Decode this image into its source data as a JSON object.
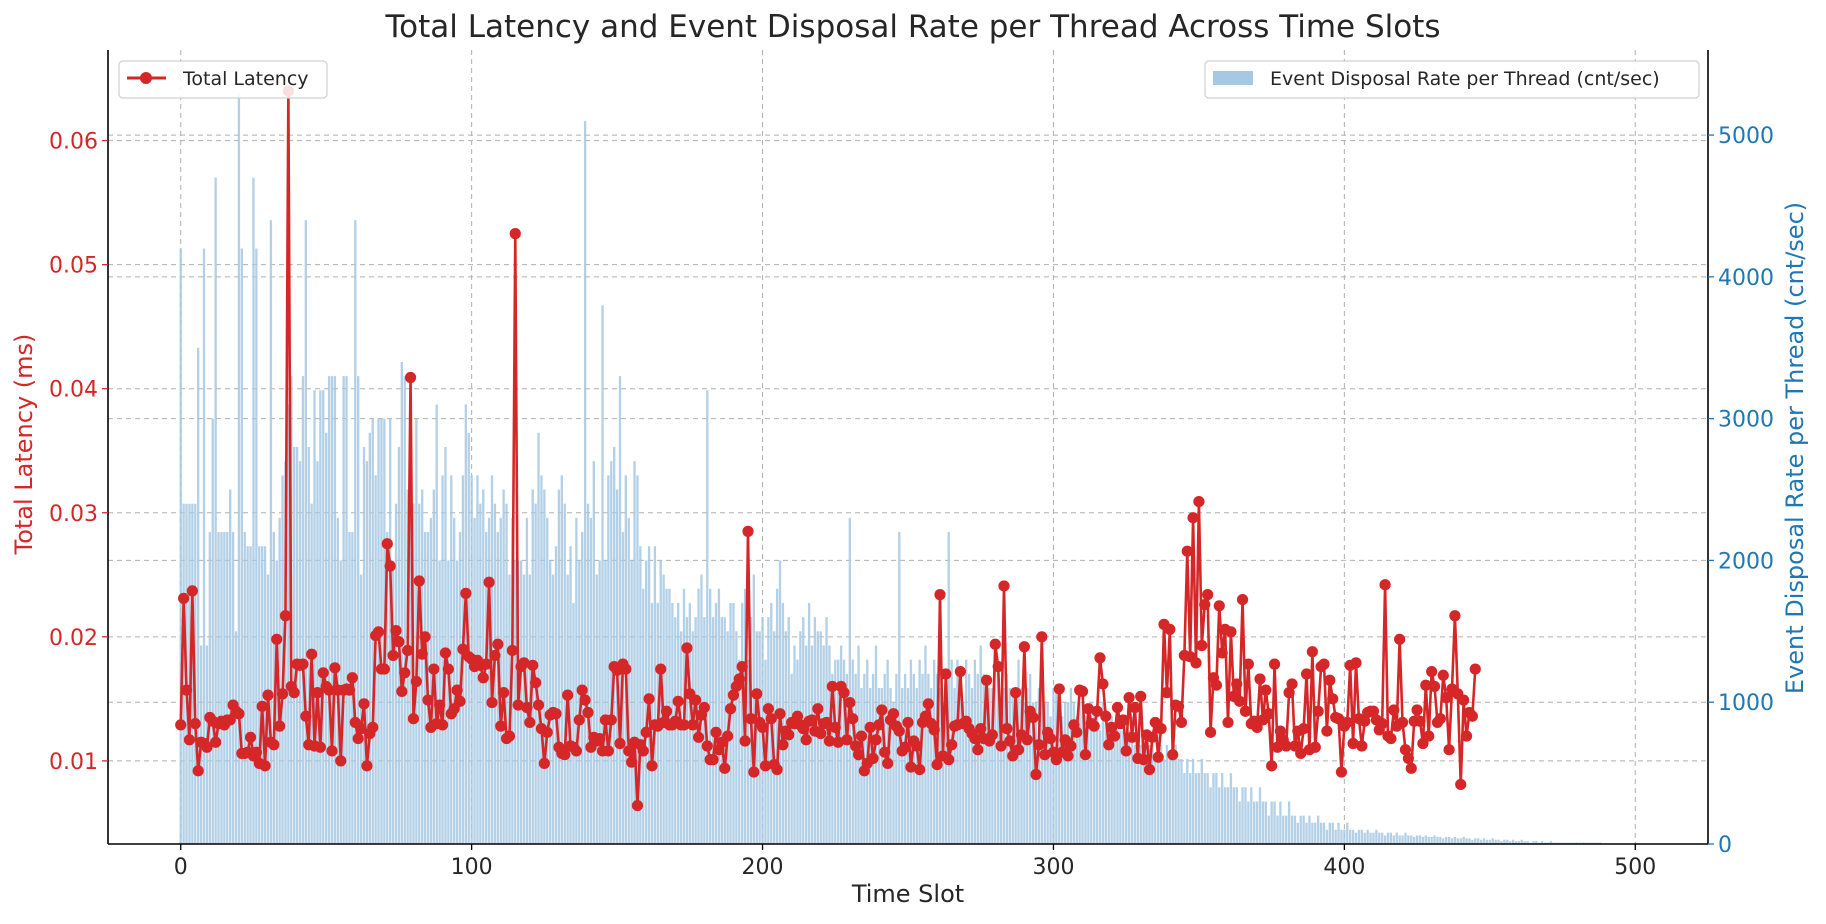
{
  "chart_data": {
    "type": "bar+line",
    "title": "Total Latency and Event Disposal Rate per Thread Across Time Slots",
    "xlabel": "Time Slot",
    "ylabel_left": "Total Latency (ms)",
    "ylabel_right": "Event Disposal Rate per Thread (cnt/sec)",
    "xlim": [
      -25,
      525
    ],
    "ylim_left": [
      0.0033,
      0.0673
    ],
    "ylim_right": [
      0,
      5600
    ],
    "x_ticks": [
      "0",
      "100",
      "200",
      "300",
      "400",
      "500"
    ],
    "y_left_ticks": [
      "0.01",
      "0.02",
      "0.03",
      "0.04",
      "0.05",
      "0.06"
    ],
    "y_right_ticks": [
      "0",
      "1000",
      "2000",
      "3000",
      "4000",
      "5000"
    ],
    "grid": true,
    "legend_left": {
      "label": "Total Latency",
      "position": "upper-left"
    },
    "legend_right": {
      "label": "Event Disposal Rate per Thread (cnt/sec)",
      "position": "upper-right"
    },
    "colors": {
      "line": "#d62728",
      "bars": "#a6c8e3",
      "left_axis": "#d62728",
      "right_axis": "#1f77b4"
    },
    "series": [
      {
        "name": "Total Latency",
        "kind": "line",
        "axis": "left",
        "values": [
          0.0129,
          0.0231,
          0.0157,
          0.0117,
          0.0237,
          0.013,
          0.0092,
          0.0115,
          0.0114,
          0.0111,
          0.0135,
          0.0132,
          0.0115,
          0.013,
          0.0132,
          0.0129,
          0.0133,
          0.0133,
          0.0145,
          0.014,
          0.0138,
          0.0106,
          0.0106,
          0.0107,
          0.0119,
          0.0104,
          0.0107,
          0.0098,
          0.0144,
          0.0096,
          0.0153,
          0.0115,
          0.0113,
          0.0198,
          0.0128,
          0.0154,
          0.0217,
          0.064,
          0.016,
          0.0155,
          0.0178,
          0.0177,
          0.0178,
          0.0136,
          0.0113,
          0.0186,
          0.0112,
          0.0155,
          0.0111,
          0.0171,
          0.016,
          0.0157,
          0.0108,
          0.0175,
          0.0157,
          0.01,
          0.0157,
          0.0158,
          0.0157,
          0.0167,
          0.0131,
          0.0118,
          0.0126,
          0.0146,
          0.0096,
          0.0122,
          0.0127,
          0.0201,
          0.0204,
          0.0174,
          0.0174,
          0.0275,
          0.0257,
          0.0185,
          0.0205,
          0.0196,
          0.0156,
          0.0171,
          0.0189,
          0.0409,
          0.0134,
          0.0164,
          0.0245,
          0.0186,
          0.02,
          0.0149,
          0.0127,
          0.0174,
          0.013,
          0.0145,
          0.0129,
          0.0187,
          0.0174,
          0.0138,
          0.0142,
          0.0157,
          0.0148,
          0.019,
          0.0235,
          0.0184,
          0.0182,
          0.0176,
          0.0181,
          0.0177,
          0.0167,
          0.0178,
          0.0244,
          0.0147,
          0.0185,
          0.0194,
          0.0128,
          0.0155,
          0.0118,
          0.012,
          0.0189,
          0.0525,
          0.0145,
          0.0176,
          0.0179,
          0.0143,
          0.0131,
          0.0177,
          0.0163,
          0.0145,
          0.0126,
          0.0098,
          0.0123,
          0.0137,
          0.0139,
          0.0138,
          0.0111,
          0.0106,
          0.0105,
          0.0153,
          0.0112,
          0.0111,
          0.0108,
          0.0133,
          0.0157,
          0.0149,
          0.0139,
          0.0111,
          0.0119,
          0.0116,
          0.0118,
          0.0108,
          0.0133,
          0.0108,
          0.0133,
          0.0176,
          0.0173,
          0.0114,
          0.0178,
          0.0174,
          0.0108,
          0.0099,
          0.0115,
          0.0064,
          0.0113,
          0.0108,
          0.0123,
          0.015,
          0.0096,
          0.0129,
          0.0128,
          0.0174,
          0.0131,
          0.014,
          0.0129,
          0.0129,
          0.0132,
          0.0148,
          0.0129,
          0.0129,
          0.0191,
          0.0154,
          0.0129,
          0.0149,
          0.0119,
          0.0137,
          0.0143,
          0.0112,
          0.0101,
          0.0101,
          0.0123,
          0.0109,
          0.0115,
          0.0094,
          0.012,
          0.0142,
          0.0153,
          0.016,
          0.0166,
          0.0176,
          0.0116,
          0.0285,
          0.0134,
          0.0091,
          0.0154,
          0.0131,
          0.0127,
          0.0096,
          0.0142,
          0.0134,
          0.0097,
          0.0093,
          0.0138,
          0.0113,
          0.0124,
          0.0121,
          0.0131,
          0.013,
          0.0136,
          0.0129,
          0.0126,
          0.0117,
          0.0132,
          0.0133,
          0.0124,
          0.0142,
          0.0122,
          0.013,
          0.0131,
          0.0116,
          0.016,
          0.0127,
          0.0115,
          0.016,
          0.0155,
          0.0117,
          0.0147,
          0.0134,
          0.0112,
          0.0105,
          0.012,
          0.0092,
          0.0098,
          0.0127,
          0.0102,
          0.0117,
          0.0129,
          0.0141,
          0.0107,
          0.0098,
          0.0133,
          0.0138,
          0.0128,
          0.0124,
          0.0108,
          0.0111,
          0.0131,
          0.0095,
          0.0116,
          0.0112,
          0.0093,
          0.0131,
          0.0136,
          0.0146,
          0.013,
          0.0125,
          0.0097,
          0.0234,
          0.0104,
          0.017,
          0.0101,
          0.0113,
          0.0128,
          0.0129,
          0.0172,
          0.013,
          0.0132,
          0.0126,
          0.0122,
          0.0118,
          0.0109,
          0.0126,
          0.0118,
          0.0165,
          0.0116,
          0.0121,
          0.0194,
          0.0176,
          0.0112,
          0.0241,
          0.0126,
          0.0116,
          0.0104,
          0.0155,
          0.0109,
          0.0121,
          0.0192,
          0.0117,
          0.014,
          0.0135,
          0.0089,
          0.0113,
          0.02,
          0.0105,
          0.0123,
          0.0118,
          0.0107,
          0.0101,
          0.0158,
          0.0107,
          0.0117,
          0.0104,
          0.0112,
          0.0129,
          0.0123,
          0.0157,
          0.0156,
          0.0105,
          0.0142,
          0.013,
          0.0128,
          0.014,
          0.0183,
          0.0162,
          0.0136,
          0.0113,
          0.0127,
          0.012,
          0.0143,
          0.013,
          0.0133,
          0.0108,
          0.0151,
          0.0119,
          0.0143,
          0.0102,
          0.0152,
          0.0101,
          0.0121,
          0.0093,
          0.0119,
          0.0131,
          0.0103,
          0.0126,
          0.021,
          0.0155,
          0.0206,
          0.0105,
          0.0145,
          0.0144,
          0.0131,
          0.0185,
          0.0269,
          0.0184,
          0.0296,
          0.0179,
          0.0309,
          0.0193,
          0.0226,
          0.0234,
          0.0123,
          0.0167,
          0.0161,
          0.0225,
          0.0187,
          0.0206,
          0.0131,
          0.0204,
          0.0152,
          0.0162,
          0.0148,
          0.023,
          0.014,
          0.0178,
          0.013,
          0.0132,
          0.0127,
          0.0166,
          0.0133,
          0.0157,
          0.0138,
          0.0096,
          0.0178,
          0.0111,
          0.0124,
          0.0117,
          0.0112,
          0.0155,
          0.0162,
          0.0112,
          0.0124,
          0.0106,
          0.0126,
          0.017,
          0.0109,
          0.0188,
          0.0111,
          0.014,
          0.0176,
          0.0178,
          0.0124,
          0.0165,
          0.015,
          0.0135,
          0.0134,
          0.0091,
          0.0128,
          0.0131,
          0.0177,
          0.0114,
          0.0179,
          0.0134,
          0.0112,
          0.0132,
          0.0139,
          0.014,
          0.014,
          0.0133,
          0.0125,
          0.013,
          0.0242,
          0.012,
          0.0118,
          0.0141,
          0.0128,
          0.0198,
          0.0131,
          0.0109,
          0.0102,
          0.0094,
          0.0132,
          0.0141,
          0.0132,
          0.0114,
          0.0161,
          0.012,
          0.0172,
          0.016,
          0.0131,
          0.0134,
          0.0169,
          0.0151,
          0.0109,
          0.0158,
          0.0217,
          0.0154,
          0.0081,
          0.0149,
          0.012,
          0.0139,
          0.0136,
          0.0174
        ]
      },
      {
        "name": "Event Disposal Rate per Thread (cnt/sec)",
        "kind": "bar",
        "axis": "right",
        "values": [
          4200,
          2400,
          2400,
          2400,
          2400,
          2400,
          3500,
          1400,
          4200,
          1400,
          2200,
          3000,
          4700,
          2200,
          2200,
          2200,
          2200,
          2500,
          2200,
          1500,
          5300,
          4200,
          2200,
          2100,
          2100,
          4700,
          4200,
          2100,
          2100,
          2100,
          1900,
          4400,
          2200,
          2000,
          2300,
          2600,
          2700,
          3100,
          3300,
          2800,
          2800,
          2700,
          3300,
          4400,
          2800,
          2400,
          3200,
          2700,
          3200,
          3200,
          2900,
          3300,
          3300,
          3300,
          2300,
          2000,
          3300,
          3300,
          2200,
          2200,
          4400,
          3300,
          1900,
          2800,
          2700,
          2900,
          3000,
          2600,
          3000,
          3000,
          3000,
          2200,
          3000,
          2000,
          2400,
          2800,
          3400,
          3300,
          2500,
          3300,
          2400,
          3000,
          2400,
          2500,
          2200,
          2200,
          2300,
          2500,
          3100,
          2000,
          2600,
          2800,
          2000,
          2600,
          2300,
          2000,
          2200,
          2600,
          3100,
          2900,
          2600,
          2300,
          2600,
          2400,
          2500,
          2200,
          2300,
          2600,
          2400,
          2200,
          2300,
          2500,
          2400,
          1900,
          2300,
          2000,
          2000,
          2000,
          1900,
          2300,
          1900,
          2500,
          2400,
          2900,
          2600,
          2500,
          2300,
          2000,
          1900,
          2100,
          2500,
          2600,
          2400,
          1900,
          2100,
          1700,
          2300,
          2000,
          2200,
          5100,
          2400,
          2300,
          2700,
          1900,
          2000,
          3800,
          2000,
          2600,
          2700,
          2800,
          2500,
          3300,
          2200,
          2600,
          2300,
          2000,
          2700,
          2600,
          2100,
          1800,
          2000,
          2100,
          1700,
          2100,
          1700,
          2000,
          1900,
          1800,
          1800,
          1700,
          1600,
          1700,
          1500,
          1800,
          1600,
          1700,
          1500,
          1600,
          1800,
          1900,
          1600,
          3200,
          1800,
          1600,
          1700,
          1800,
          1600,
          1600,
          1500,
          1700,
          1700,
          1500,
          1300,
          1700,
          1800,
          1300,
          1600,
          1900,
          1500,
          1500,
          1600,
          1300,
          1600,
          1700,
          1500,
          1800,
          2000,
          1700,
          1500,
          1600,
          1200,
          1400,
          1300,
          1500,
          1600,
          1400,
          1700,
          1400,
          1600,
          1500,
          1500,
          1400,
          1600,
          1400,
          1200,
          1300,
          1300,
          1400,
          1300,
          1200,
          2300,
          1300,
          1200,
          1400,
          1100,
          1200,
          1300,
          1100,
          1200,
          1400,
          1100,
          1100,
          1200,
          1300,
          1100,
          1000,
          1200,
          2200,
          1100,
          1200,
          1100,
          1300,
          1200,
          1100,
          1300,
          1200,
          1400,
          1200,
          1100,
          1300,
          1200,
          1100,
          1000,
          1200,
          2200,
          1300,
          1100,
          1300,
          1200,
          1000,
          1300,
          1200,
          1100,
          1300,
          1200,
          1400,
          1200,
          1000,
          1100,
          1100,
          1300,
          1200,
          1000,
          1100,
          1200,
          1100,
          1100,
          1000,
          1300,
          1100,
          1000,
          1100,
          1200,
          1000,
          1000,
          1100,
          1200,
          1000,
          1000,
          900,
          1100,
          1100,
          1000,
          900,
          1000,
          1000,
          1100,
          1000,
          900,
          1000,
          1000,
          900,
          900,
          1000,
          900,
          900,
          800,
          1000,
          900,
          800,
          900,
          800,
          900,
          800,
          800,
          700,
          800,
          900,
          700,
          800,
          700,
          700,
          800,
          700,
          700,
          600,
          800,
          700,
          600,
          700,
          600,
          600,
          700,
          600,
          600,
          500,
          600,
          500,
          600,
          500,
          500,
          600,
          500,
          500,
          400,
          500,
          500,
          400,
          500,
          400,
          400,
          500,
          400,
          400,
          300,
          400,
          400,
          300,
          400,
          300,
          300,
          400,
          300,
          300,
          200,
          300,
          300,
          200,
          300,
          200,
          200,
          300,
          200,
          200,
          150,
          200,
          200,
          150,
          200,
          150,
          150,
          200,
          150,
          150,
          100,
          150,
          150,
          100,
          150,
          100,
          100,
          150,
          100,
          100,
          80,
          100,
          100,
          80,
          100,
          80,
          80,
          100,
          80,
          80,
          60,
          80,
          80,
          60,
          80,
          60,
          60,
          80,
          60,
          60,
          50,
          60,
          60,
          50,
          60,
          50,
          50,
          60,
          50,
          50,
          40,
          50,
          50,
          40,
          50,
          40,
          40,
          50,
          40,
          40,
          30,
          40,
          40,
          30,
          40,
          30,
          30,
          40,
          30,
          30,
          20,
          30,
          30,
          20,
          30,
          20,
          20,
          30,
          20,
          20,
          10,
          20,
          20,
          10,
          20,
          10,
          10,
          20,
          10,
          10,
          10,
          10,
          10,
          10,
          10,
          10,
          10,
          10,
          10,
          10,
          10,
          10,
          10,
          10,
          10
        ]
      }
    ]
  }
}
